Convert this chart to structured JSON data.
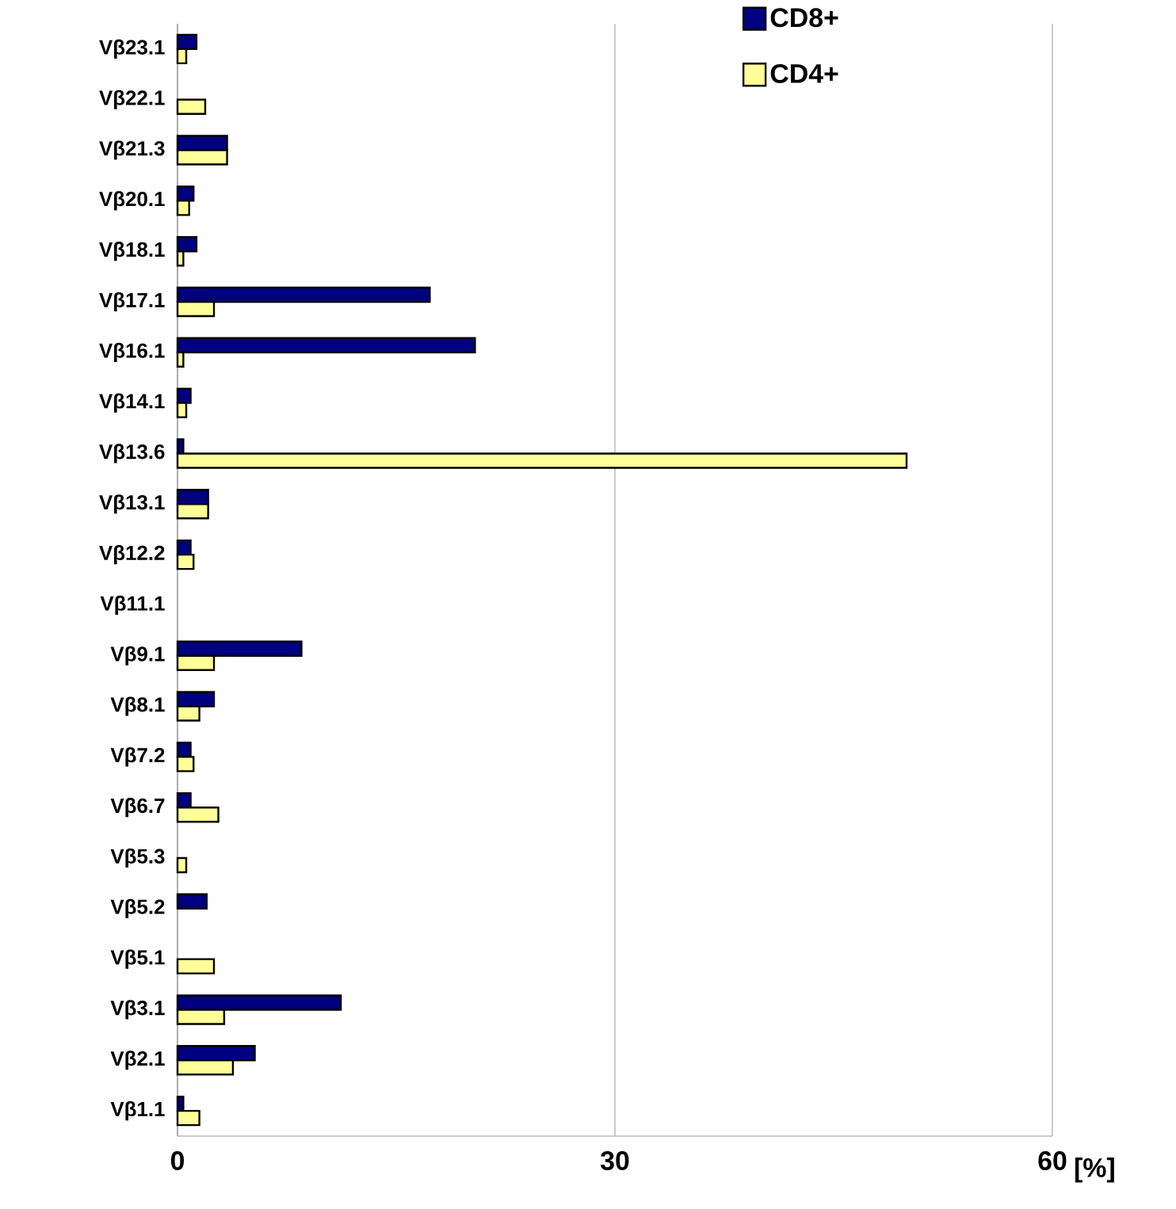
{
  "chart_data": {
    "type": "bar",
    "orientation": "horizontal",
    "xlabel": "[%]",
    "categories": [
      "Vβ23.1",
      "Vβ22.1",
      "Vβ21.3",
      "Vβ20.1",
      "Vβ18.1",
      "Vβ17.1",
      "Vβ16.1",
      "Vβ14.1",
      "Vβ13.6",
      "Vβ13.1",
      "Vβ12.2",
      "Vβ11.1",
      "Vβ9.1",
      "Vβ8.1",
      "Vβ7.2",
      "Vβ6.7",
      "Vβ5.3",
      "Vβ5.2",
      "Vβ5.1",
      "Vβ3.1",
      "Vβ2.1",
      "Vβ1.1"
    ],
    "series": [
      {
        "name": "CD8+",
        "color": "#000080",
        "values": [
          1.3,
          null,
          3.4,
          1.1,
          1.3,
          17.3,
          20.4,
          0.9,
          0.4,
          2.1,
          0.9,
          null,
          8.5,
          2.5,
          0.9,
          0.9,
          null,
          2.0,
          null,
          11.2,
          5.3,
          0.4
        ]
      },
      {
        "name": "CD4+",
        "color": "#ffff99",
        "values": [
          0.6,
          1.9,
          3.4,
          0.8,
          0.4,
          2.5,
          0.4,
          0.6,
          50,
          2.1,
          1.1,
          null,
          2.5,
          1.5,
          1.1,
          2.8,
          0.6,
          null,
          2.5,
          3.2,
          3.8,
          1.5
        ]
      }
    ],
    "xlim": [
      0,
      60
    ],
    "xticks": [
      0,
      30,
      60
    ],
    "grid": "x",
    "legend": "top right"
  }
}
